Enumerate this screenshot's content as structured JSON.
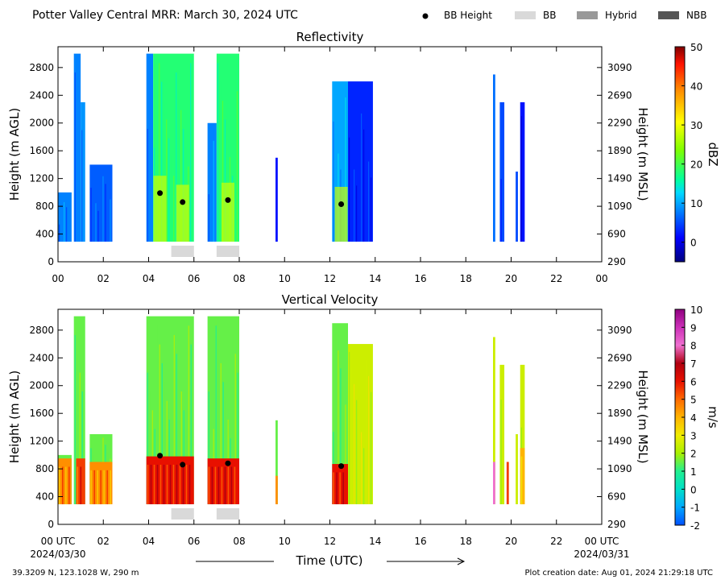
{
  "header": {
    "title": "Potter Valley Central MRR:  March 30, 2024 UTC",
    "legend": [
      {
        "name": "legend-bb-height",
        "label": "BB Height",
        "marker": "dot",
        "color": "#000000"
      },
      {
        "name": "legend-bb",
        "label": "BB",
        "marker": "box",
        "color": "#d9d9d9"
      },
      {
        "name": "legend-hybrid",
        "label": "Hybrid",
        "marker": "box",
        "color": "#999999"
      },
      {
        "name": "legend-nbb",
        "label": "NBB",
        "marker": "box",
        "color": "#555555"
      }
    ]
  },
  "chart_data": [
    {
      "type": "heatmap",
      "title": "Reflectivity",
      "ylabel": "Height (m AGL)",
      "y2label": "Height (m MSL)",
      "xlim": [
        0,
        24
      ],
      "ylim": [
        0,
        3100
      ],
      "xticks": [
        "00",
        "02",
        "04",
        "06",
        "08",
        "10",
        "12",
        "14",
        "16",
        "18",
        "20",
        "22",
        "00"
      ],
      "yticks": [
        0,
        400,
        800,
        1200,
        1600,
        2000,
        2400,
        2800
      ],
      "y2ticks": [
        290,
        690,
        1090,
        1490,
        1890,
        2290,
        2690,
        3090
      ],
      "colorbar": {
        "label": "dBZ",
        "min": -5,
        "max": 50,
        "ticks": [
          0,
          10,
          20,
          30,
          40,
          50
        ]
      },
      "bb_height": [
        {
          "time": 4.5,
          "height": 990
        },
        {
          "time": 5.5,
          "height": 860
        },
        {
          "time": 7.5,
          "height": 890
        },
        {
          "time": 12.5,
          "height": 830
        }
      ],
      "bb_periods": [
        {
          "start": 5.0,
          "end": 6.0,
          "type": "BB"
        },
        {
          "start": 7.0,
          "end": 8.0,
          "type": "BB"
        }
      ],
      "precip_segments": [
        {
          "start": 0.0,
          "end": 0.6,
          "top": 1000,
          "value": 8
        },
        {
          "start": 0.7,
          "end": 1.0,
          "top": 3000,
          "value": 8
        },
        {
          "start": 1.0,
          "end": 1.2,
          "top": 2300,
          "value": 9
        },
        {
          "start": 1.4,
          "end": 2.4,
          "top": 1400,
          "value": 6
        },
        {
          "start": 3.9,
          "end": 4.2,
          "top": 3000,
          "value": 8
        },
        {
          "start": 4.2,
          "end": 6.0,
          "top": 3000,
          "value": 18
        },
        {
          "start": 6.6,
          "end": 7.0,
          "top": 2000,
          "value": 8
        },
        {
          "start": 7.0,
          "end": 8.0,
          "top": 3000,
          "value": 18
        },
        {
          "start": 9.6,
          "end": 9.7,
          "top": 1500,
          "value": 2
        },
        {
          "start": 12.1,
          "end": 12.8,
          "top": 2600,
          "value": 10
        },
        {
          "start": 12.8,
          "end": 13.9,
          "top": 2600,
          "value": 3
        },
        {
          "start": 19.2,
          "end": 19.3,
          "top": 2700,
          "value": 7
        },
        {
          "start": 19.5,
          "end": 19.7,
          "top": 2300,
          "value": 5
        },
        {
          "start": 20.2,
          "end": 20.3,
          "top": 1300,
          "value": 5
        },
        {
          "start": 20.4,
          "end": 20.6,
          "top": 2300,
          "value": 2
        }
      ]
    },
    {
      "type": "heatmap",
      "title": "Vertical Velocity",
      "ylabel": "Height (m AGL)",
      "y2label": "Height (m MSL)",
      "xlabel": "Time (UTC)",
      "xlim": [
        0,
        24
      ],
      "ylim": [
        0,
        3100
      ],
      "xticks": [
        "00 UTC",
        "02",
        "04",
        "06",
        "08",
        "10",
        "12",
        "14",
        "16",
        "18",
        "20",
        "22",
        "00 UTC"
      ],
      "xdates": [
        "2024/03/30",
        "2024/03/31"
      ],
      "yticks": [
        0,
        400,
        800,
        1200,
        1600,
        2000,
        2400,
        2800
      ],
      "y2ticks": [
        290,
        690,
        1090,
        1490,
        1890,
        2290,
        2690,
        3090
      ],
      "colorbar": {
        "label": "m/s",
        "min": -2,
        "max": 10,
        "ticks": [
          -2,
          -1,
          0,
          1,
          2,
          3,
          4,
          5,
          6,
          7,
          8,
          9,
          10
        ]
      },
      "bb_height": [
        {
          "time": 4.5,
          "height": 990
        },
        {
          "time": 5.5,
          "height": 860
        },
        {
          "time": 7.5,
          "height": 880
        },
        {
          "time": 12.5,
          "height": 840
        }
      ],
      "bb_periods": [
        {
          "start": 5.0,
          "end": 6.0,
          "type": "BB"
        },
        {
          "start": 7.0,
          "end": 8.0,
          "type": "BB"
        }
      ],
      "precip_segments": [
        {
          "start": 0.0,
          "end": 0.6,
          "top": 1000,
          "value": 1.5
        },
        {
          "start": 0.7,
          "end": 1.2,
          "top": 3000,
          "value": 1.5
        },
        {
          "start": 1.4,
          "end": 2.4,
          "top": 1300,
          "value": 1.5
        },
        {
          "start": 3.9,
          "end": 6.0,
          "top": 3000,
          "value": 1.5
        },
        {
          "start": 6.6,
          "end": 8.0,
          "top": 3000,
          "value": 1.5
        },
        {
          "start": 9.6,
          "end": 9.7,
          "top": 1500,
          "value": 1.5
        },
        {
          "start": 12.1,
          "end": 12.8,
          "top": 2900,
          "value": 1.5
        },
        {
          "start": 12.8,
          "end": 13.9,
          "top": 2600,
          "value": 2.5
        },
        {
          "start": 19.2,
          "end": 19.3,
          "top": 2700,
          "value": 2.5
        },
        {
          "start": 19.5,
          "end": 19.7,
          "top": 2300,
          "value": 2.5
        },
        {
          "start": 20.2,
          "end": 20.3,
          "top": 1300,
          "value": 2.5
        },
        {
          "start": 20.4,
          "end": 20.6,
          "top": 2300,
          "value": 2.5
        }
      ],
      "fall_cores": [
        {
          "start": 0.0,
          "end": 0.6,
          "top": 950,
          "value": 4.5
        },
        {
          "start": 0.8,
          "end": 1.2,
          "top": 950,
          "value": 5.5
        },
        {
          "start": 1.4,
          "end": 2.4,
          "top": 900,
          "value": 4.5
        },
        {
          "start": 3.9,
          "end": 6.0,
          "top": 980,
          "value": 6
        },
        {
          "start": 6.6,
          "end": 8.0,
          "top": 950,
          "value": 6
        },
        {
          "start": 9.6,
          "end": 9.7,
          "top": 700,
          "value": 4.5
        },
        {
          "start": 12.1,
          "end": 12.8,
          "top": 870,
          "value": 6
        },
        {
          "start": 19.2,
          "end": 19.3,
          "top": 900,
          "value": 8
        },
        {
          "start": 19.8,
          "end": 19.9,
          "top": 900,
          "value": 5.5
        },
        {
          "start": 20.4,
          "end": 20.6,
          "top": 1100,
          "value": 4
        }
      ]
    }
  ],
  "footer": {
    "coordinates": "39.3209 N, 123.1028 W, 290 m",
    "creation_date": "Plot creation date: Aug 01, 2024 21:29:18 UTC"
  }
}
